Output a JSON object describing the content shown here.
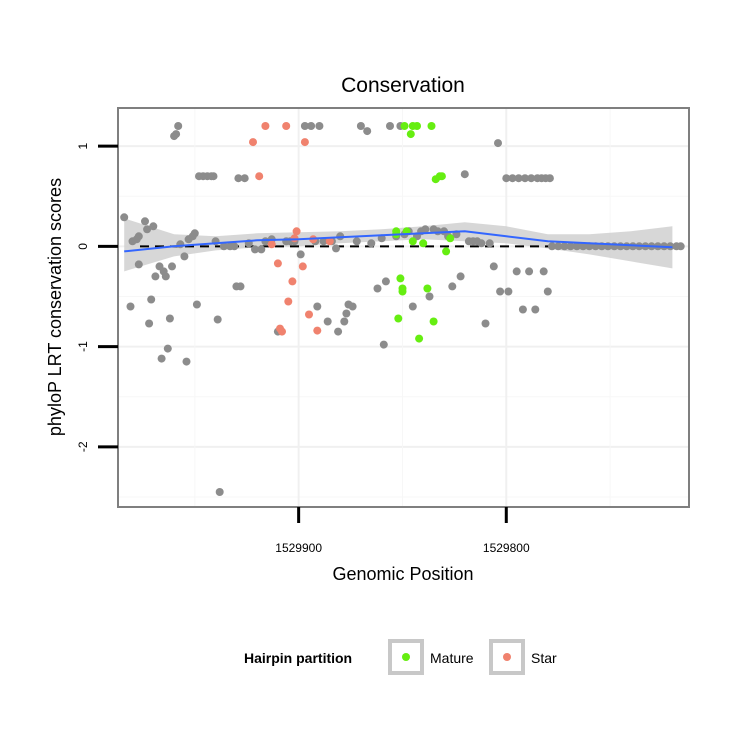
{
  "chart_data": {
    "type": "scatter",
    "title": "Conservation",
    "xlabel": "Genomic Position",
    "ylabel": "phyloP LRT conservation scores",
    "x_reversed": true,
    "xlim": [
      1529987,
      1529712
    ],
    "ylim": [
      -2.6,
      1.38
    ],
    "x_ticks": [
      {
        "value": 1529900,
        "label": "1529900"
      },
      {
        "value": 1529800,
        "label": "1529800"
      }
    ],
    "y_ticks": [
      {
        "value": 1,
        "label": "1"
      },
      {
        "value": 0,
        "label": "0"
      },
      {
        "value": -1,
        "label": "-1"
      },
      {
        "value": -2,
        "label": "-2"
      }
    ],
    "grid": true,
    "reference_line": {
      "y": 0,
      "style": "dashed"
    },
    "legend": {
      "title": "Hairpin partition",
      "placement": "bottom",
      "entries": [
        {
          "label": "Mature",
          "color": "#66ee11"
        },
        {
          "label": "Star",
          "color": "#f0826e"
        }
      ]
    },
    "colors": {
      "other": "#8c8c8c",
      "Mature": "#66ee11",
      "Star": "#f0826e",
      "smooth": "#3366ff",
      "band": "#d0d0d0"
    },
    "smooth": {
      "x": [
        1529984,
        1529960,
        1529940,
        1529920,
        1529900,
        1529880,
        1529860,
        1529840,
        1529820,
        1529800,
        1529780,
        1529760,
        1529740,
        1529720
      ],
      "y": [
        -0.05,
        0.0,
        0.03,
        0.06,
        0.07,
        0.09,
        0.11,
        0.13,
        0.15,
        0.1,
        0.05,
        0.03,
        0.01,
        -0.01
      ],
      "lower": [
        -0.25,
        -0.1,
        -0.04,
        -0.01,
        0.0,
        0.03,
        0.05,
        0.07,
        0.05,
        0.03,
        -0.02,
        -0.08,
        -0.15,
        -0.22
      ],
      "upper": [
        0.28,
        0.12,
        0.1,
        0.13,
        0.14,
        0.15,
        0.17,
        0.2,
        0.24,
        0.2,
        0.12,
        0.12,
        0.15,
        0.2
      ]
    },
    "series": [
      {
        "group": "other",
        "points": [
          [
            1529984,
            0.29
          ],
          [
            1529981,
            -0.6
          ],
          [
            1529980,
            0.05
          ],
          [
            1529978,
            0.07
          ],
          [
            1529977,
            0.1
          ],
          [
            1529977,
            -0.18
          ],
          [
            1529974,
            0.25
          ],
          [
            1529973,
            0.17
          ],
          [
            1529972,
            -0.77
          ],
          [
            1529971,
            -0.53
          ],
          [
            1529970,
            0.2
          ],
          [
            1529969,
            -0.3
          ],
          [
            1529967,
            -0.2
          ],
          [
            1529966,
            -1.12
          ],
          [
            1529965,
            -0.25
          ],
          [
            1529964,
            -0.3
          ],
          [
            1529963,
            -1.02
          ],
          [
            1529962,
            -0.72
          ],
          [
            1529961,
            -0.2
          ],
          [
            1529960,
            1.1
          ],
          [
            1529959,
            1.12
          ],
          [
            1529958,
            1.2
          ],
          [
            1529957,
            0.02
          ],
          [
            1529955,
            -0.1
          ],
          [
            1529954,
            -1.15
          ],
          [
            1529953,
            0.07
          ],
          [
            1529951,
            0.1
          ],
          [
            1529950,
            0.13
          ],
          [
            1529949,
            -0.58
          ],
          [
            1529948,
            0.7
          ],
          [
            1529946,
            0.7
          ],
          [
            1529944,
            0.7
          ],
          [
            1529942,
            0.7
          ],
          [
            1529941,
            0.7
          ],
          [
            1529940,
            0.05
          ],
          [
            1529939,
            -0.73
          ],
          [
            1529938,
            -2.45
          ],
          [
            1529936,
            0.0
          ],
          [
            1529933,
            0.0
          ],
          [
            1529931,
            0.0
          ],
          [
            1529930,
            -0.4
          ],
          [
            1529929,
            0.68
          ],
          [
            1529928,
            -0.4
          ],
          [
            1529926,
            0.68
          ],
          [
            1529924,
            0.03
          ],
          [
            1529921,
            -0.03
          ],
          [
            1529918,
            -0.03
          ],
          [
            1529916,
            0.05
          ],
          [
            1529913,
            0.07
          ],
          [
            1529910,
            -0.85
          ],
          [
            1529906,
            0.05
          ],
          [
            1529904,
            0.05
          ],
          [
            1529902,
            0.05
          ],
          [
            1529899,
            -0.08
          ],
          [
            1529897,
            1.2
          ],
          [
            1529894,
            1.2
          ],
          [
            1529892,
            0.05
          ],
          [
            1529891,
            -0.6
          ],
          [
            1529890,
            1.2
          ],
          [
            1529888,
            0.05
          ],
          [
            1529886,
            -0.75
          ],
          [
            1529884,
            0.05
          ],
          [
            1529882,
            -0.02
          ],
          [
            1529881,
            -0.85
          ],
          [
            1529880,
            0.1
          ],
          [
            1529878,
            -0.75
          ],
          [
            1529877,
            -0.67
          ],
          [
            1529876,
            -0.58
          ],
          [
            1529874,
            -0.6
          ],
          [
            1529872,
            0.05
          ],
          [
            1529870,
            1.2
          ],
          [
            1529867,
            1.15
          ],
          [
            1529865,
            0.03
          ],
          [
            1529862,
            -0.42
          ],
          [
            1529860,
            0.08
          ],
          [
            1529859,
            -0.98
          ],
          [
            1529858,
            -0.35
          ],
          [
            1529856,
            1.2
          ],
          [
            1529853,
            0.1
          ],
          [
            1529851,
            1.2
          ],
          [
            1529849,
            0.12
          ],
          [
            1529847,
            0.15
          ],
          [
            1529845,
            -0.6
          ],
          [
            1529843,
            0.1
          ],
          [
            1529841,
            0.15
          ],
          [
            1529839,
            0.17
          ],
          [
            1529837,
            -0.5
          ],
          [
            1529835,
            0.17
          ],
          [
            1529833,
            0.15
          ],
          [
            1529830,
            0.15
          ],
          [
            1529828,
            0.1
          ],
          [
            1529826,
            -0.4
          ],
          [
            1529824,
            0.12
          ],
          [
            1529822,
            -0.3
          ],
          [
            1529820,
            0.72
          ],
          [
            1529818,
            0.05
          ],
          [
            1529816,
            0.05
          ],
          [
            1529814,
            0.05
          ],
          [
            1529812,
            0.03
          ],
          [
            1529810,
            -0.77
          ],
          [
            1529808,
            0.03
          ],
          [
            1529806,
            -0.2
          ],
          [
            1529804,
            1.03
          ],
          [
            1529803,
            -0.45
          ],
          [
            1529800,
            0.68
          ],
          [
            1529799,
            -0.45
          ],
          [
            1529797,
            0.68
          ],
          [
            1529795,
            -0.25
          ],
          [
            1529794,
            0.68
          ],
          [
            1529792,
            -0.63
          ],
          [
            1529791,
            0.68
          ],
          [
            1529789,
            -0.25
          ],
          [
            1529788,
            0.68
          ],
          [
            1529786,
            -0.63
          ],
          [
            1529785,
            0.68
          ],
          [
            1529783,
            0.68
          ],
          [
            1529782,
            -0.25
          ],
          [
            1529781,
            0.68
          ],
          [
            1529780,
            -0.45
          ],
          [
            1529779,
            0.68
          ],
          [
            1529778,
            0.0
          ],
          [
            1529775,
            0.0
          ],
          [
            1529772,
            0.0
          ],
          [
            1529769,
            0.0
          ],
          [
            1529766,
            0.0
          ],
          [
            1529763,
            0.0
          ],
          [
            1529760,
            0.0
          ],
          [
            1529757,
            0.0
          ],
          [
            1529754,
            0.0
          ],
          [
            1529751,
            0.0
          ],
          [
            1529748,
            0.0
          ],
          [
            1529745,
            0.0
          ],
          [
            1529742,
            0.0
          ],
          [
            1529739,
            0.0
          ],
          [
            1529736,
            0.0
          ],
          [
            1529733,
            0.0
          ],
          [
            1529730,
            0.0
          ],
          [
            1529727,
            0.0
          ],
          [
            1529724,
            0.0
          ],
          [
            1529721,
            0.0
          ],
          [
            1529718,
            0.0
          ],
          [
            1529716,
            0.0
          ]
        ]
      },
      {
        "group": "Star",
        "points": [
          [
            1529922,
            1.04
          ],
          [
            1529916,
            1.2
          ],
          [
            1529906,
            1.2
          ],
          [
            1529902,
            0.08
          ],
          [
            1529919,
            0.7
          ],
          [
            1529913,
            0.02
          ],
          [
            1529910,
            -0.17
          ],
          [
            1529909,
            -0.82
          ],
          [
            1529908,
            -0.85
          ],
          [
            1529905,
            -0.55
          ],
          [
            1529903,
            -0.35
          ],
          [
            1529901,
            0.15
          ],
          [
            1529898,
            -0.2
          ],
          [
            1529897,
            1.04
          ],
          [
            1529895,
            -0.68
          ],
          [
            1529893,
            0.07
          ],
          [
            1529891,
            -0.84
          ],
          [
            1529885,
            0.05
          ]
        ]
      },
      {
        "group": "Mature",
        "points": [
          [
            1529849,
            1.2
          ],
          [
            1529846,
            1.12
          ],
          [
            1529845,
            1.2
          ],
          [
            1529843,
            1.2
          ],
          [
            1529836,
            1.2
          ],
          [
            1529834,
            0.67
          ],
          [
            1529832,
            0.7
          ],
          [
            1529831,
            0.7
          ],
          [
            1529853,
            0.15
          ],
          [
            1529852,
            -0.72
          ],
          [
            1529851,
            -0.32
          ],
          [
            1529850,
            -0.45
          ],
          [
            1529848,
            0.15
          ],
          [
            1529845,
            0.05
          ],
          [
            1529842,
            -0.92
          ],
          [
            1529840,
            0.03
          ],
          [
            1529838,
            -0.42
          ],
          [
            1529835,
            -0.75
          ],
          [
            1529829,
            -0.05
          ],
          [
            1529827,
            0.08
          ],
          [
            1529853,
            0.12
          ],
          [
            1529850,
            -0.42
          ]
        ]
      }
    ]
  }
}
